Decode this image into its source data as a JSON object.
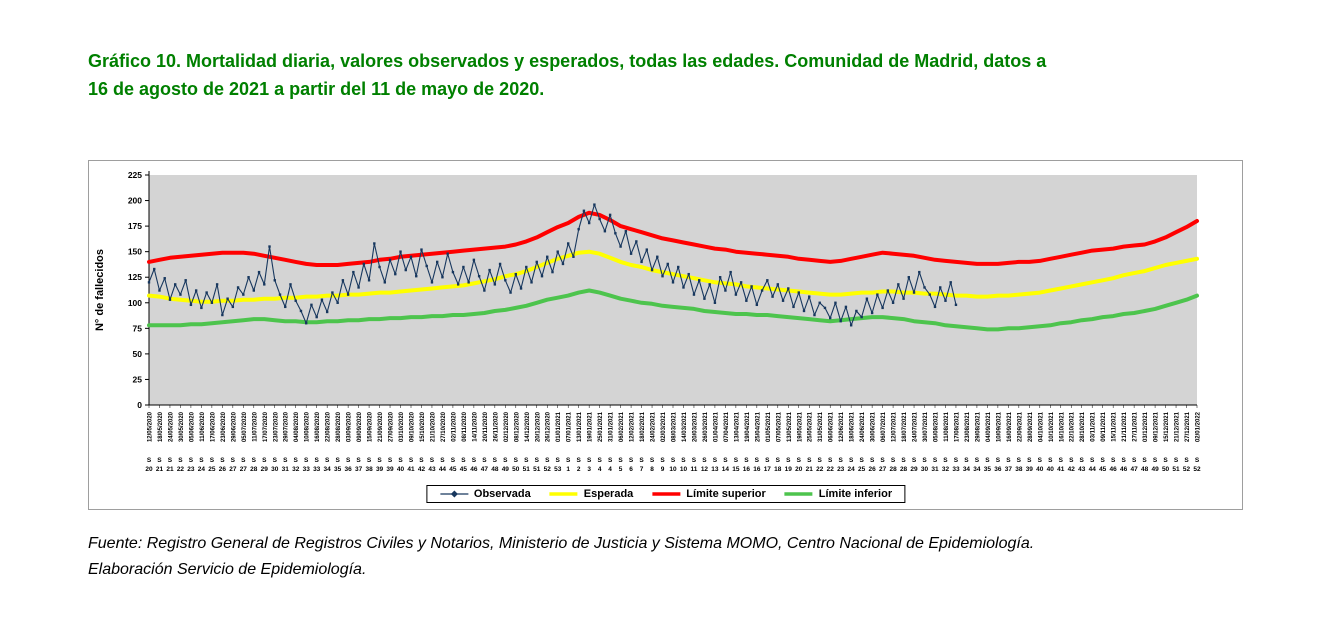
{
  "page": {
    "title_line1": "Gráfico 10. Mortalidad diaria, valores observados y esperados, todas las edades. Comunidad de Madrid, datos a",
    "title_line2": "16 de agosto de 2021 a partir del 11 de mayo de 2020.",
    "title_color": "#008000",
    "footer_line1": "Fuente: Registro General de Registros Civiles y Notarios, Ministerio de Justicia y Sistema MOMO, Centro Nacional de Epidemiología.",
    "footer_line2": "Elaboración Servicio de Epidemiología."
  },
  "chart_data": {
    "type": "line",
    "title": "",
    "ylabel": "N° de fallecidos",
    "ylim": [
      0,
      225
    ],
    "yticks": [
      0,
      25,
      50,
      75,
      100,
      125,
      150,
      175,
      200,
      225
    ],
    "plot_bg": "#d4d4d4",
    "grid": false,
    "legend_position": "bottom",
    "x_axis": {
      "week_prefix": "S",
      "dates": [
        "12/05/2020",
        "18/05/2020",
        "24/05/2020",
        "30/05/2020",
        "05/06/2020",
        "11/06/2020",
        "17/06/2020",
        "23/06/2020",
        "29/06/2020",
        "05/07/2020",
        "11/07/2020",
        "17/07/2020",
        "23/07/2020",
        "29/07/2020",
        "04/08/2020",
        "10/08/2020",
        "16/08/2020",
        "22/08/2020",
        "28/08/2020",
        "03/09/2020",
        "09/09/2020",
        "15/09/2020",
        "21/09/2020",
        "27/09/2020",
        "03/10/2020",
        "09/10/2020",
        "15/10/2020",
        "21/10/2020",
        "27/10/2020",
        "02/11/2020",
        "08/11/2020",
        "14/11/2020",
        "20/11/2020",
        "26/11/2020",
        "02/12/2020",
        "08/12/2020",
        "14/12/2020",
        "20/12/2020",
        "26/12/2020",
        "01/01/2021",
        "07/01/2021",
        "13/01/2021",
        "19/01/2021",
        "25/01/2021",
        "31/01/2021",
        "06/02/2021",
        "12/02/2021",
        "18/02/2021",
        "24/02/2021",
        "02/03/2021",
        "08/03/2021",
        "14/03/2021",
        "20/03/2021",
        "26/03/2021",
        "01/04/2021",
        "07/04/2021",
        "13/04/2021",
        "19/04/2021",
        "25/04/2021",
        "01/05/2021",
        "07/05/2021",
        "13/05/2021",
        "19/05/2021",
        "25/05/2021",
        "31/05/2021",
        "06/06/2021",
        "12/06/2021",
        "18/06/2021",
        "24/06/2021",
        "30/06/2021",
        "06/07/2021",
        "12/07/2021",
        "18/07/2021",
        "24/07/2021",
        "30/07/2021",
        "05/08/2021",
        "11/08/2021",
        "17/08/2021",
        "23/08/2021",
        "29/08/2021",
        "04/09/2021",
        "10/09/2021",
        "16/09/2021",
        "22/09/2021",
        "28/09/2021",
        "04/10/2021",
        "10/10/2021",
        "16/10/2021",
        "22/10/2021",
        "28/10/2021",
        "03/11/2021",
        "09/11/2021",
        "15/11/2021",
        "21/11/2021",
        "27/11/2021",
        "03/12/2021",
        "09/12/2021",
        "15/12/2021",
        "21/12/2021",
        "27/12/2021",
        "02/01/2022"
      ],
      "weeks": [
        20,
        21,
        21,
        22,
        23,
        24,
        25,
        26,
        27,
        27,
        28,
        29,
        30,
        31,
        32,
        33,
        33,
        34,
        35,
        36,
        37,
        38,
        39,
        39,
        40,
        41,
        42,
        43,
        44,
        45,
        45,
        46,
        47,
        48,
        49,
        50,
        51,
        51,
        52,
        53,
        1,
        2,
        3,
        4,
        4,
        5,
        6,
        7,
        8,
        9,
        10,
        10,
        11,
        12,
        13,
        14,
        15,
        16,
        16,
        17,
        18,
        19,
        20,
        21,
        22,
        22,
        23,
        24,
        25,
        26,
        27,
        28,
        28,
        29,
        30,
        31,
        32,
        33,
        34,
        34,
        35,
        36,
        37,
        38,
        39,
        40,
        40,
        41,
        42,
        43,
        44,
        45,
        46,
        46,
        47,
        48,
        49,
        50,
        51,
        52,
        52
      ]
    },
    "series": [
      {
        "name": "Observada",
        "color": "#17375E",
        "style": "markers",
        "line_width": 1.1,
        "marker_size": 2.4,
        "x_step_label_units": 0.5,
        "values": [
          120,
          133,
          112,
          124,
          103,
          118,
          108,
          122,
          98,
          112,
          95,
          110,
          100,
          118,
          88,
          104,
          96,
          115,
          108,
          125,
          112,
          130,
          118,
          155,
          122,
          108,
          96,
          118,
          102,
          92,
          80,
          98,
          86,
          103,
          91,
          110,
          100,
          122,
          108,
          130,
          115,
          138,
          122,
          158,
          135,
          120,
          142,
          128,
          150,
          132,
          145,
          126,
          152,
          136,
          120,
          140,
          125,
          148,
          130,
          118,
          135,
          120,
          142,
          126,
          112,
          132,
          118,
          138,
          122,
          110,
          128,
          114,
          135,
          120,
          140,
          126,
          145,
          130,
          150,
          138,
          158,
          145,
          172,
          190,
          178,
          196,
          182,
          170,
          186,
          168,
          155,
          170,
          148,
          160,
          140,
          152,
          132,
          145,
          126,
          138,
          120,
          135,
          115,
          128,
          108,
          122,
          104,
          118,
          100,
          125,
          112,
          130,
          108,
          120,
          102,
          116,
          98,
          112,
          122,
          106,
          118,
          102,
          114,
          96,
          110,
          92,
          106,
          88,
          100,
          95,
          85,
          100,
          82,
          96,
          78,
          92,
          86,
          104,
          90,
          108,
          95,
          112,
          100,
          118,
          104,
          125,
          110,
          130,
          115,
          108,
          96,
          115,
          102,
          120,
          98
        ]
      },
      {
        "name": "Esperada",
        "color": "#FFFF00",
        "style": "smooth",
        "line_width": 4,
        "values": [
          107,
          106,
          104,
          103,
          102,
          101,
          101,
          102,
          102,
          103,
          103,
          104,
          104,
          105,
          105,
          106,
          106,
          107,
          107,
          108,
          108,
          109,
          110,
          110,
          111,
          112,
          113,
          114,
          115,
          116,
          117,
          119,
          121,
          123,
          126,
          128,
          131,
          135,
          139,
          143,
          146,
          149,
          150,
          148,
          144,
          140,
          137,
          135,
          132,
          130,
          128,
          126,
          124,
          122,
          120,
          119,
          118,
          116,
          115,
          114,
          113,
          112,
          111,
          110,
          109,
          108,
          108,
          109,
          110,
          110,
          111,
          111,
          110,
          110,
          109,
          109,
          108,
          107,
          107,
          106,
          106,
          107,
          107,
          108,
          109,
          110,
          112,
          114,
          116,
          118,
          120,
          122,
          124,
          127,
          129,
          131,
          134,
          137,
          139,
          141,
          143
        ]
      },
      {
        "name": "Límite superior",
        "color": "#FF0000",
        "style": "smooth",
        "line_width": 4,
        "values": [
          140,
          142,
          144,
          145,
          146,
          147,
          148,
          149,
          149,
          149,
          148,
          146,
          144,
          142,
          140,
          138,
          137,
          137,
          137,
          138,
          139,
          140,
          142,
          143,
          145,
          146,
          147,
          148,
          149,
          150,
          151,
          152,
          153,
          154,
          155,
          157,
          160,
          164,
          169,
          174,
          178,
          184,
          188,
          186,
          181,
          175,
          172,
          169,
          166,
          163,
          161,
          159,
          157,
          155,
          153,
          152,
          150,
          149,
          148,
          147,
          146,
          145,
          143,
          142,
          141,
          140,
          141,
          143,
          145,
          147,
          149,
          148,
          147,
          146,
          144,
          142,
          141,
          140,
          139,
          138,
          138,
          138,
          139,
          140,
          140,
          141,
          143,
          145,
          147,
          149,
          151,
          152,
          153,
          155,
          156,
          157,
          160,
          164,
          169,
          174,
          180
        ]
      },
      {
        "name": "Límite inferior",
        "color": "#4DC44D",
        "style": "smooth",
        "line_width": 4,
        "values": [
          78,
          78,
          78,
          78,
          79,
          79,
          80,
          81,
          82,
          83,
          84,
          84,
          83,
          82,
          82,
          81,
          81,
          82,
          82,
          83,
          83,
          84,
          84,
          85,
          85,
          86,
          86,
          87,
          87,
          88,
          88,
          89,
          90,
          92,
          93,
          95,
          97,
          100,
          103,
          105,
          107,
          110,
          112,
          110,
          107,
          104,
          102,
          100,
          99,
          97,
          96,
          95,
          94,
          92,
          91,
          90,
          89,
          89,
          88,
          88,
          87,
          86,
          85,
          84,
          83,
          82,
          83,
          84,
          85,
          86,
          86,
          85,
          84,
          82,
          81,
          80,
          78,
          77,
          76,
          75,
          74,
          74,
          75,
          75,
          76,
          77,
          78,
          80,
          81,
          83,
          84,
          86,
          87,
          89,
          90,
          92,
          94,
          97,
          100,
          103,
          107
        ]
      }
    ]
  }
}
